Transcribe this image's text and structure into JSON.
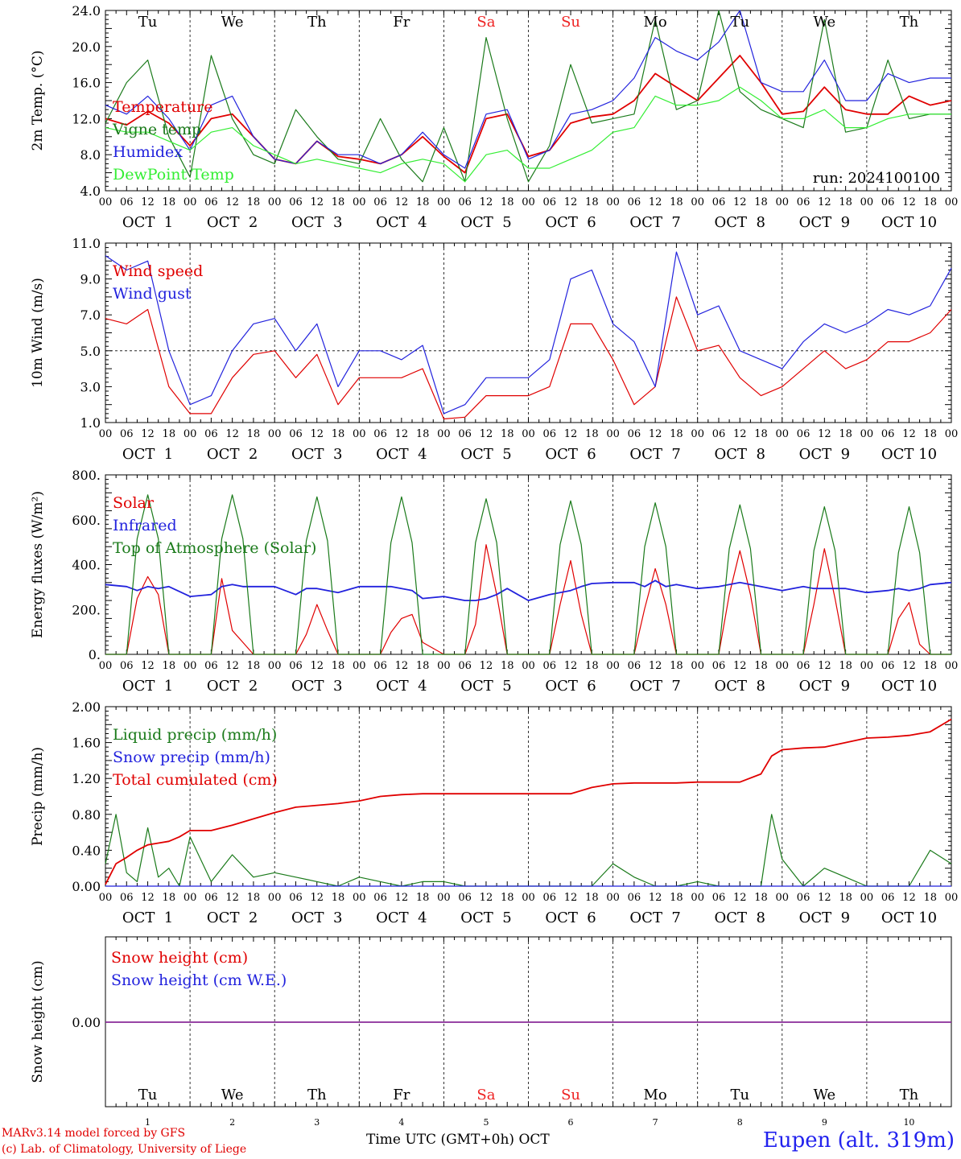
{
  "run_label": "run: 2024100100",
  "x_axis_title": "Time UTC (GMT+0h)",
  "x_axis_month": "OCT",
  "station": "Eupen (alt. 319m)",
  "credits": [
    "MARv3.14 model forced by GFS",
    "(c) Lab. of Climatology, University of Liege"
  ],
  "hour_ticks": [
    "00",
    "06",
    "12",
    "18"
  ],
  "final_hour_tick": "00",
  "dates": [
    "OCT  1",
    "OCT  2",
    "OCT  3",
    "OCT  4",
    "OCT  5",
    "OCT  6",
    "OCT  7",
    "OCT  8",
    "OCT  9",
    "OCT 10"
  ],
  "day_numbers": [
    "1",
    "2",
    "3",
    "4",
    "5",
    "6",
    "7",
    "8",
    "9",
    "10"
  ],
  "weekdays": [
    "Tu",
    "We",
    "Th",
    "Fr",
    "Sa",
    "Su",
    "Mo",
    "Tu",
    "We",
    "Th"
  ],
  "weekend_color": "#ee2222",
  "chart_data": [
    {
      "type": "line",
      "ylabel": "2m Temp. (°C)",
      "ylim": [
        4.0,
        24.0
      ],
      "yticks": [
        "4.0",
        "8.0",
        "12.0",
        "16.0",
        "20.0",
        "24.0"
      ],
      "legend": [
        "Temperature",
        "Vigne temp",
        "Humidex",
        "DewPoint Temp"
      ],
      "x_hours": [
        0,
        6,
        12,
        18,
        24,
        30,
        36,
        42,
        48,
        54,
        60,
        66,
        72,
        78,
        84,
        90,
        96,
        102,
        108,
        114,
        120,
        126,
        132,
        138,
        144,
        150,
        156,
        162,
        168,
        174,
        180,
        186,
        192,
        198,
        204,
        210,
        216,
        222,
        228,
        234,
        240
      ],
      "series": [
        {
          "name": "Temperature",
          "color": "#e00000",
          "values": [
            12.0,
            11.3,
            12.8,
            11.5,
            9.0,
            12.0,
            12.5,
            10.0,
            7.5,
            7.0,
            9.5,
            7.8,
            7.5,
            7.0,
            8.0,
            10.0,
            7.8,
            6.0,
            12.0,
            12.5,
            7.8,
            8.5,
            11.5,
            12.2,
            12.5,
            14.0,
            17.0,
            15.5,
            14.0,
            16.5,
            19.0,
            16.0,
            12.5,
            12.8,
            15.5,
            13.0,
            12.5,
            12.5,
            14.5,
            13.5,
            14.0
          ]
        },
        {
          "name": "Vigne temp",
          "color": "#1a7a1a",
          "values": [
            11.5,
            16.0,
            18.5,
            10.0,
            5.5,
            19.0,
            12.0,
            8.0,
            7.0,
            13.0,
            10.0,
            7.5,
            7.0,
            12.0,
            7.5,
            5.0,
            11.0,
            5.0,
            21.0,
            12.0,
            5.0,
            9.0,
            18.0,
            11.5,
            12.0,
            12.5,
            23.0,
            13.0,
            14.0,
            24.0,
            15.0,
            13.0,
            12.0,
            11.0,
            23.0,
            10.5,
            11.0,
            18.5,
            12.0,
            12.5,
            12.5
          ]
        },
        {
          "name": "Humidex",
          "color": "#2222dd",
          "values": [
            13.5,
            12.5,
            14.5,
            12.0,
            8.5,
            13.5,
            14.5,
            10.0,
            7.5,
            7.0,
            9.5,
            8.0,
            8.0,
            7.0,
            8.0,
            10.5,
            8.0,
            6.5,
            12.5,
            13.0,
            7.5,
            8.5,
            12.5,
            13.0,
            14.0,
            16.5,
            21.0,
            19.5,
            18.5,
            20.5,
            24.0,
            16.0,
            15.0,
            15.0,
            18.5,
            14.0,
            14.0,
            17.0,
            16.0,
            16.5,
            16.5
          ]
        },
        {
          "name": "DewPoint Temp",
          "color": "#33ee33",
          "values": [
            11.0,
            10.5,
            10.5,
            9.5,
            8.5,
            10.5,
            11.0,
            9.0,
            8.0,
            7.0,
            7.5,
            7.0,
            6.5,
            6.0,
            7.0,
            7.5,
            7.0,
            5.0,
            8.0,
            8.5,
            6.5,
            6.5,
            7.5,
            8.5,
            10.5,
            11.0,
            14.5,
            13.5,
            13.5,
            14.0,
            15.5,
            14.0,
            12.0,
            12.0,
            13.0,
            11.0,
            11.0,
            12.0,
            12.5,
            12.5,
            12.5
          ]
        }
      ]
    },
    {
      "type": "line",
      "ylabel": "10m Wind (m/s)",
      "ylim": [
        1.0,
        11.0
      ],
      "yticks": [
        "1.0",
        "3.0",
        "5.0",
        "7.0",
        "9.0",
        "11.0"
      ],
      "reference_line": 5.0,
      "legend": [
        "Wind speed",
        "Wind gust"
      ],
      "x_hours": [
        0,
        6,
        12,
        18,
        24,
        30,
        36,
        42,
        48,
        54,
        60,
        66,
        72,
        78,
        84,
        90,
        96,
        102,
        108,
        114,
        120,
        126,
        132,
        138,
        144,
        150,
        156,
        162,
        168,
        174,
        180,
        186,
        192,
        198,
        204,
        210,
        216,
        222,
        228,
        234,
        240
      ],
      "series": [
        {
          "name": "Wind speed",
          "color": "#e00000",
          "values": [
            6.8,
            6.5,
            7.3,
            3.0,
            1.5,
            1.5,
            3.5,
            4.8,
            5.0,
            3.5,
            4.8,
            2.0,
            3.5,
            3.5,
            3.5,
            4.0,
            1.2,
            1.3,
            2.5,
            2.5,
            2.5,
            3.0,
            6.5,
            6.5,
            4.5,
            2.0,
            3.0,
            8.0,
            5.0,
            5.3,
            3.5,
            2.5,
            3.0,
            4.0,
            5.0,
            4.0,
            4.5,
            5.5,
            5.5,
            6.0,
            7.3
          ]
        },
        {
          "name": "Wind gust",
          "color": "#2222dd",
          "values": [
            10.3,
            9.5,
            10.0,
            5.0,
            2.0,
            2.5,
            5.0,
            6.5,
            6.8,
            5.0,
            6.5,
            3.0,
            5.0,
            5.0,
            4.5,
            5.3,
            1.5,
            2.0,
            3.5,
            3.5,
            3.5,
            4.5,
            9.0,
            9.5,
            6.5,
            5.5,
            3.0,
            10.5,
            7.0,
            7.5,
            5.0,
            4.5,
            4.0,
            5.5,
            6.5,
            6.0,
            6.5,
            7.3,
            7.0,
            7.5,
            9.6
          ]
        }
      ]
    },
    {
      "type": "line",
      "ylabel": "Energy fluxes (W/m²)",
      "ylim": [
        0,
        900
      ],
      "yticks": [
        "0.",
        "200.",
        "400.",
        "600.",
        "800."
      ],
      "legend": [
        "Solar",
        "Infrared",
        "Top of Atmosphere (Solar)"
      ],
      "x_hours": [
        0,
        6,
        9,
        12,
        15,
        18,
        24,
        30,
        33,
        36,
        39,
        42,
        48,
        54,
        57,
        60,
        63,
        66,
        72,
        78,
        81,
        84,
        87,
        90,
        96,
        102,
        105,
        108,
        111,
        114,
        120,
        126,
        129,
        132,
        135,
        138,
        144,
        150,
        153,
        156,
        159,
        162,
        168,
        174,
        177,
        180,
        183,
        186,
        192,
        198,
        201,
        204,
        207,
        210,
        216,
        222,
        225,
        228,
        231,
        234,
        240
      ],
      "series": [
        {
          "name": "Solar",
          "color": "#e00000",
          "values": [
            0,
            0,
            280,
            390,
            300,
            0,
            0,
            0,
            380,
            120,
            60,
            0,
            0,
            0,
            100,
            250,
            120,
            0,
            0,
            0,
            110,
            180,
            200,
            60,
            0,
            0,
            150,
            550,
            300,
            0,
            0,
            0,
            250,
            470,
            200,
            0,
            0,
            0,
            230,
            430,
            250,
            0,
            0,
            0,
            300,
            520,
            300,
            0,
            0,
            0,
            250,
            530,
            280,
            0,
            0,
            0,
            180,
            260,
            50,
            0,
            0
          ]
        },
        {
          "name": "Infrared",
          "color": "#2222dd",
          "values": [
            350,
            340,
            320,
            340,
            330,
            340,
            290,
            300,
            340,
            350,
            340,
            340,
            340,
            300,
            330,
            330,
            320,
            310,
            340,
            340,
            340,
            330,
            320,
            280,
            290,
            270,
            270,
            280,
            300,
            330,
            270,
            300,
            310,
            320,
            340,
            355,
            360,
            360,
            340,
            370,
            340,
            350,
            330,
            340,
            350,
            360,
            350,
            340,
            320,
            340,
            330,
            330,
            330,
            330,
            310,
            320,
            330,
            320,
            330,
            350,
            360
          ]
        },
        {
          "name": "Top of Atmosphere (Solar)",
          "color": "#1a7a1a",
          "values": [
            0,
            0,
            580,
            800,
            580,
            0,
            0,
            0,
            580,
            800,
            580,
            0,
            0,
            0,
            570,
            790,
            570,
            0,
            0,
            0,
            560,
            790,
            560,
            0,
            0,
            0,
            560,
            780,
            560,
            0,
            0,
            0,
            550,
            770,
            550,
            0,
            0,
            0,
            540,
            760,
            540,
            0,
            0,
            0,
            530,
            750,
            530,
            0,
            0,
            0,
            520,
            740,
            520,
            0,
            0,
            0,
            510,
            740,
            510,
            0,
            0
          ]
        }
      ]
    },
    {
      "type": "line",
      "ylabel": "Precip (mm/h)",
      "ylim": [
        0.0,
        2.0
      ],
      "yticks": [
        "0.00",
        "0.40",
        "0.80",
        "1.20",
        "1.60",
        "2.00"
      ],
      "legend": [
        "Liquid precip (mm/h)",
        "Snow precip (mm/h)",
        "Total cumulated (cm)"
      ],
      "x_hours": [
        0,
        3,
        6,
        9,
        12,
        15,
        18,
        21,
        24,
        30,
        36,
        42,
        48,
        54,
        60,
        66,
        72,
        78,
        84,
        90,
        96,
        102,
        108,
        114,
        120,
        126,
        132,
        138,
        144,
        150,
        156,
        162,
        168,
        174,
        180,
        186,
        189,
        192,
        198,
        204,
        210,
        216,
        222,
        228,
        234,
        240
      ],
      "series": [
        {
          "name": "Liquid precip (mm/h)",
          "color": "#1a7a1a",
          "values": [
            0.25,
            0.8,
            0.15,
            0.05,
            0.65,
            0.1,
            0.2,
            0.0,
            0.55,
            0.05,
            0.35,
            0.1,
            0.15,
            0.1,
            0.05,
            0.0,
            0.1,
            0.05,
            0.0,
            0.05,
            0.05,
            0.0,
            0.0,
            0.0,
            0.0,
            0.0,
            0.0,
            0.0,
            0.25,
            0.1,
            0.0,
            0.0,
            0.05,
            0.0,
            0.0,
            0.0,
            0.8,
            0.3,
            0.0,
            0.2,
            0.1,
            0.0,
            0.0,
            0.0,
            0.4,
            0.25
          ]
        },
        {
          "name": "Snow precip (mm/h)",
          "color": "#2222dd",
          "values": [
            0,
            0,
            0,
            0,
            0,
            0,
            0,
            0,
            0,
            0,
            0,
            0,
            0,
            0,
            0,
            0,
            0,
            0,
            0,
            0,
            0,
            0,
            0,
            0,
            0,
            0,
            0,
            0,
            0,
            0,
            0,
            0,
            0,
            0,
            0,
            0,
            0,
            0,
            0,
            0,
            0,
            0,
            0,
            0,
            0,
            0
          ]
        },
        {
          "name": "Total cumulated (cm)",
          "color": "#e00000",
          "values": [
            0.02,
            0.25,
            0.32,
            0.4,
            0.46,
            0.48,
            0.5,
            0.55,
            0.62,
            0.62,
            0.68,
            0.75,
            0.82,
            0.88,
            0.9,
            0.92,
            0.95,
            1.0,
            1.02,
            1.03,
            1.03,
            1.03,
            1.03,
            1.03,
            1.03,
            1.03,
            1.03,
            1.1,
            1.14,
            1.15,
            1.15,
            1.15,
            1.16,
            1.16,
            1.16,
            1.25,
            1.45,
            1.52,
            1.54,
            1.55,
            1.6,
            1.65,
            1.66,
            1.68,
            1.72,
            1.86
          ]
        }
      ]
    },
    {
      "type": "line",
      "ylabel": "Snow height (cm)",
      "yticks": [
        "0.00"
      ],
      "legend": [
        "Snow height (cm)",
        "Snow height (cm W.E.)"
      ],
      "x_hours": [
        0,
        240
      ],
      "series": [
        {
          "name": "Snow height (cm)",
          "color": "#e00000",
          "values": [
            0.0,
            0.0
          ]
        },
        {
          "name": "Snow height (cm W.E.)",
          "color": "#2222dd",
          "values": [
            0.0,
            0.0
          ]
        }
      ]
    }
  ]
}
